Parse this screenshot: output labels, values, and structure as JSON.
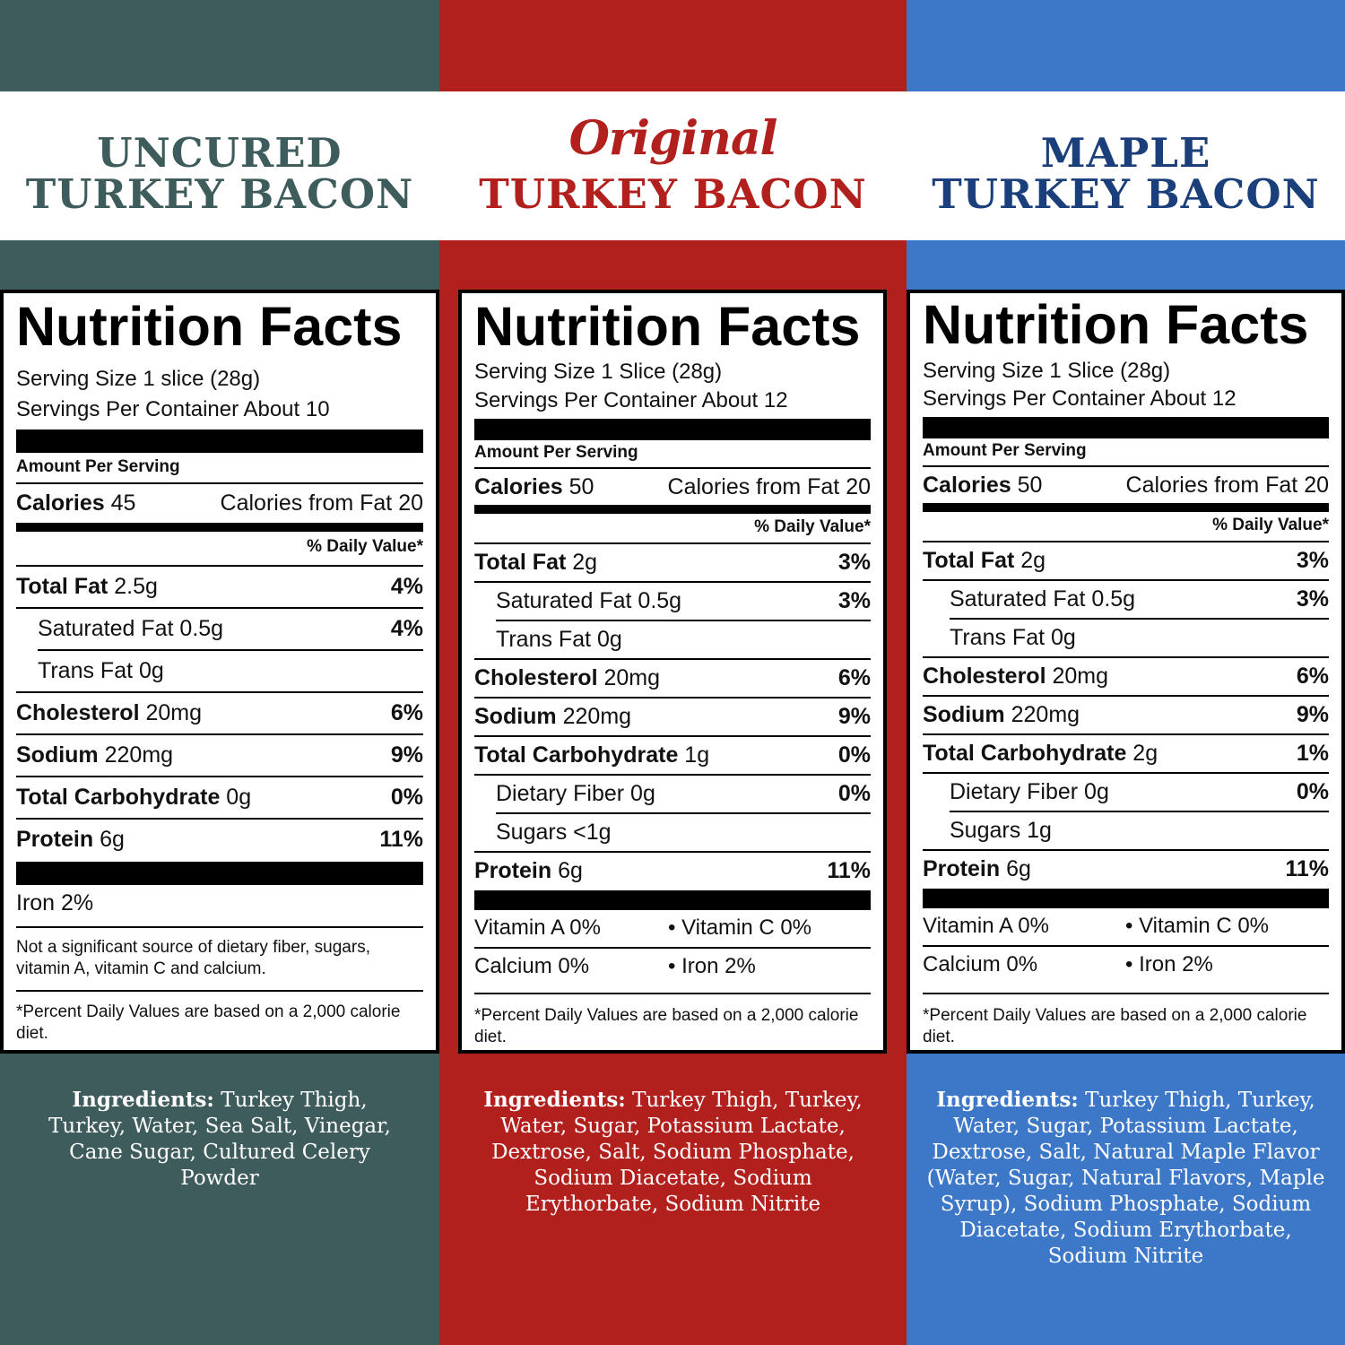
{
  "colors": {
    "uncured": "#3e5c5b",
    "original": "#b2201d",
    "maple": "#3d78c8",
    "uncured_title": "#3e5c5b",
    "original_title": "#b2201d",
    "maple_title": "#1a3f7a"
  },
  "uncured": {
    "title_line1": "UNCURED",
    "title_line2": "TURKEY BACON",
    "nf_title": "Nutrition Facts",
    "serving_size": "Serving Size 1 slice (28g)",
    "servings_per": "Servings Per Container About 10",
    "amount_per": "Amount Per Serving",
    "calories_label": "Calories",
    "calories_value": "45",
    "calories_fat": "Calories from Fat 20",
    "daily_value": "% Daily Value*",
    "total_fat_label": "Total Fat",
    "total_fat_value": "2.5g",
    "total_fat_pct": "4%",
    "sat_fat": "Saturated Fat 0.5g",
    "sat_fat_pct": "4%",
    "trans_fat": "Trans Fat 0g",
    "chol_label": "Cholesterol",
    "chol_value": "20mg",
    "chol_pct": "6%",
    "sodium_label": "Sodium",
    "sodium_value": "220mg",
    "sodium_pct": "9%",
    "carb_label": "Total Carbohydrate",
    "carb_value": "0g",
    "carb_pct": "0%",
    "protein_label": "Protein",
    "protein_value": "6g",
    "protein_pct": "11%",
    "iron": "Iron 2%",
    "not_sig": "Not a significant source of dietary fiber, sugars, vitamin A, vitamin C and calcium.",
    "footnote": "*Percent Daily Values are based on a 2,000 calorie diet.",
    "ingredients_label": "Ingredients:",
    "ingredients": "Turkey Thigh, Turkey, Water, Sea Salt, Vinegar, Cane Sugar, Cultured Celery Powder"
  },
  "original": {
    "title_line1": "Original",
    "title_line2": "TURKEY BACON",
    "nf_title": "Nutrition Facts",
    "serving_size": "Serving Size 1 Slice (28g)",
    "servings_per": "Servings Per Container About 12",
    "amount_per": "Amount Per Serving",
    "calories_label": "Calories",
    "calories_value": "50",
    "calories_fat": "Calories from Fat 20",
    "daily_value": "% Daily Value*",
    "total_fat_label": "Total Fat",
    "total_fat_value": "2g",
    "total_fat_pct": "3%",
    "sat_fat": "Saturated Fat 0.5g",
    "sat_fat_pct": "3%",
    "trans_fat": "Trans Fat 0g",
    "chol_label": "Cholesterol",
    "chol_value": "20mg",
    "chol_pct": "6%",
    "sodium_label": "Sodium",
    "sodium_value": "220mg",
    "sodium_pct": "9%",
    "carb_label": "Total Carbohydrate",
    "carb_value": "1g",
    "carb_pct": "0%",
    "fiber": "Dietary Fiber 0g",
    "fiber_pct": "0%",
    "sugars": "Sugars <1g",
    "protein_label": "Protein",
    "protein_value": "6g",
    "protein_pct": "11%",
    "vit_a": "Vitamin A 0%",
    "vit_c": "• Vitamin C 0%",
    "calcium": "Calcium 0%",
    "iron": "• Iron 2%",
    "footnote": "*Percent Daily Values are based on a 2,000 calorie diet.",
    "ingredients_label": "Ingredients:",
    "ingredients": "Turkey Thigh, Turkey, Water, Sugar, Potassium Lactate, Dextrose, Salt, Sodium Phosphate, Sodium Diacetate, Sodium Erythorbate, Sodium Nitrite"
  },
  "maple": {
    "title_line1": "MAPLE",
    "title_line2": "TURKEY BACON",
    "nf_title": "Nutrition Facts",
    "serving_size": "Serving Size 1 Slice (28g)",
    "servings_per": "Servings Per Container About 12",
    "amount_per": "Amount Per Serving",
    "calories_label": "Calories",
    "calories_value": "50",
    "calories_fat": "Calories from Fat 20",
    "daily_value": "% Daily Value*",
    "total_fat_label": "Total Fat",
    "total_fat_value": "2g",
    "total_fat_pct": "3%",
    "sat_fat": "Saturated Fat 0.5g",
    "sat_fat_pct": "3%",
    "trans_fat": "Trans Fat 0g",
    "chol_label": "Cholesterol",
    "chol_value": "20mg",
    "chol_pct": "6%",
    "sodium_label": "Sodium",
    "sodium_value": "220mg",
    "sodium_pct": "9%",
    "carb_label": "Total Carbohydrate",
    "carb_value": "2g",
    "carb_pct": "1%",
    "fiber": "Dietary Fiber 0g",
    "fiber_pct": "0%",
    "sugars": "Sugars 1g",
    "protein_label": "Protein",
    "protein_value": "6g",
    "protein_pct": "11%",
    "vit_a": "Vitamin A 0%",
    "vit_c": "• Vitamin C 0%",
    "calcium": "Calcium 0%",
    "iron": "• Iron 2%",
    "footnote": "*Percent Daily Values are based on a 2,000 calorie diet.",
    "ingredients_label": "Ingredients:",
    "ingredients": "Turkey Thigh, Turkey, Water, Sugar, Potassium Lactate, Dextrose, Salt, Natural Maple Flavor (Water, Sugar, Natural Flavors, Maple Syrup), Sodium Phosphate, Sodium Diacetate, Sodium Erythorbate, Sodium Nitrite"
  }
}
